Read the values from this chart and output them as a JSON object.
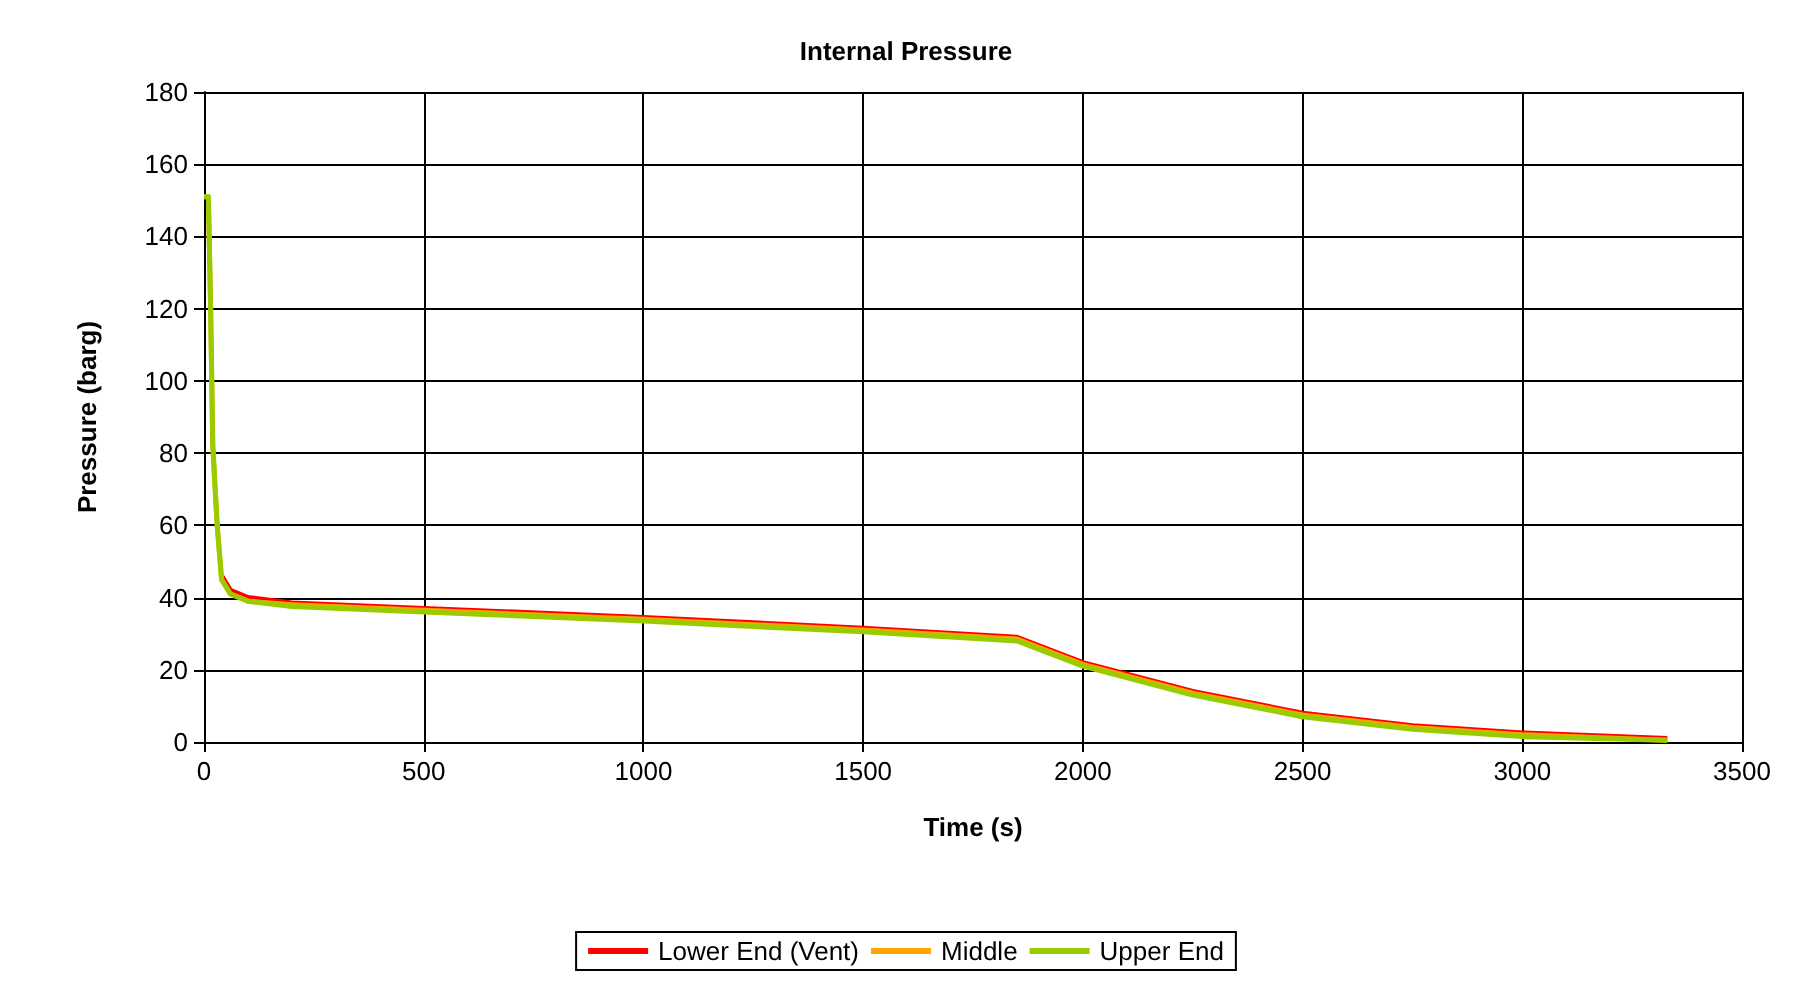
{
  "chart_data": {
    "type": "line",
    "title": "Internal Pressure",
    "xlabel": "Time (s)",
    "ylabel": "Pressure (barg)",
    "x": [
      0,
      10,
      15,
      20,
      30,
      40,
      60,
      100,
      200,
      500,
      1000,
      1500,
      1850,
      2000,
      2250,
      2500,
      2750,
      3000,
      3330
    ],
    "series": [
      {
        "name": "Lower End (Vent)",
        "color": "#ff0000",
        "values": [
          null,
          null,
          null,
          null,
          null,
          46,
          42,
          40,
          38.5,
          37,
          34.5,
          31.5,
          29,
          22,
          14,
          8,
          4.5,
          2.5,
          1
        ]
      },
      {
        "name": "Middle",
        "color": "#ffa500",
        "values": [
          151,
          151,
          121,
          82,
          60,
          45,
          41,
          39,
          38,
          36.5,
          34,
          31,
          28.5,
          21.5,
          13.5,
          7.5,
          4,
          2,
          0.5
        ]
      },
      {
        "name": "Upper End",
        "color": "#99cc00",
        "values": [
          151,
          151,
          120,
          82,
          60,
          45,
          41,
          39,
          37.5,
          36,
          33.5,
          30.5,
          28,
          21,
          13,
          7,
          3.5,
          1.5,
          0.5
        ]
      }
    ],
    "xlim": [
      0,
      3500
    ],
    "xticks": [
      0,
      500,
      1000,
      1500,
      2000,
      2500,
      3000,
      3500
    ],
    "ylim": [
      0,
      180
    ],
    "yticks": [
      0,
      20,
      40,
      60,
      80,
      100,
      120,
      140,
      160,
      180
    ],
    "grid": true,
    "legend": "bottom",
    "marker": "none",
    "line_style": "solid"
  }
}
